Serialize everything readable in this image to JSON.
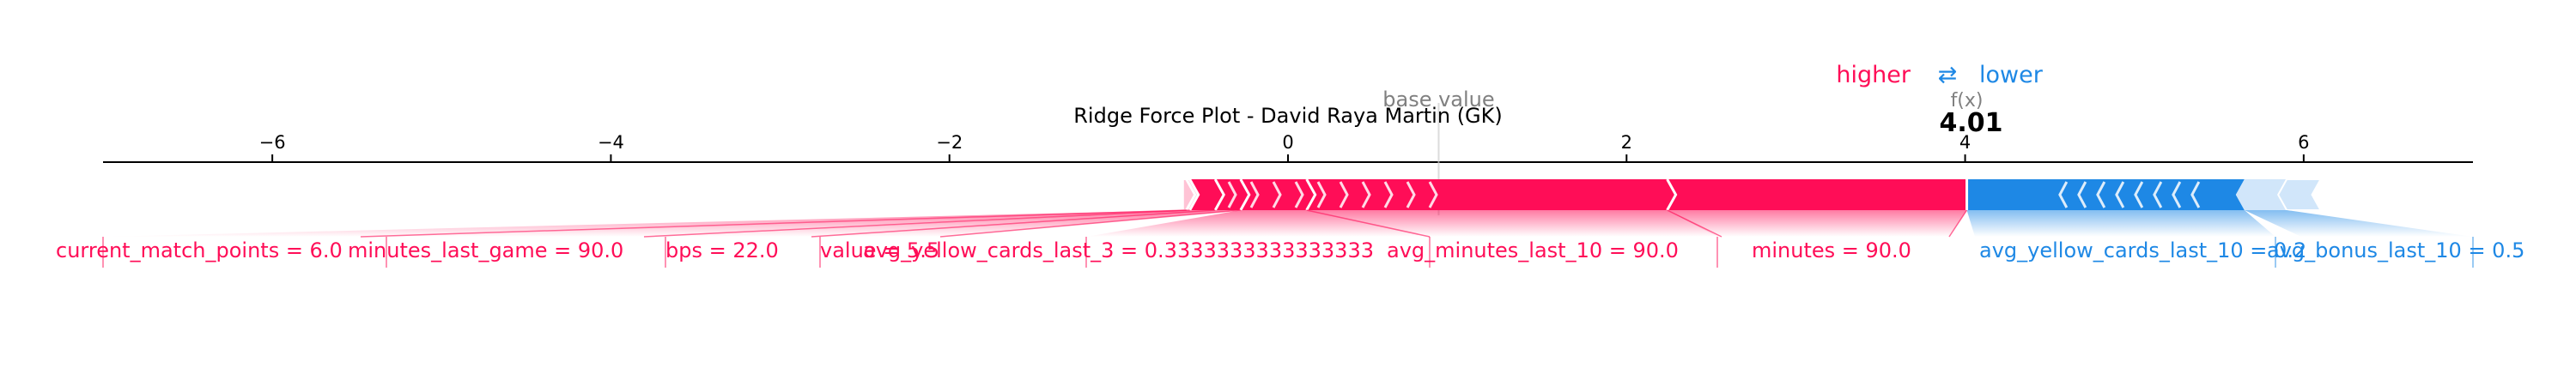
{
  "chart_data": {
    "type": "force",
    "title": "Ridge Force Plot - David Raya Martin (GK)",
    "xlim": [
      -7.0,
      7.0
    ],
    "ticks": [
      -6,
      -4,
      -2,
      0,
      2,
      4,
      6
    ],
    "tick_labels": [
      "−6",
      "−4",
      "−2",
      "0",
      "2",
      "4",
      "6"
    ],
    "base_value": 0.89,
    "base_value_label": "base value",
    "output_value": 4.01,
    "output_value_text": "4.01",
    "output_label": "f(x)",
    "legend": {
      "higher": "higher",
      "arrows": "⇄",
      "lower": "lower"
    },
    "colors": {
      "positive": "#ff0d57",
      "negative": "#1e88e5",
      "positive_light": "#ffc3d5",
      "negative_light": "#d1e6fa",
      "axis": "#000000",
      "muted": "#808080"
    },
    "positive_features": [
      {
        "label": "current_match_points = 6.0",
        "from": -0.62,
        "to": -0.6
      },
      {
        "label": "minutes_last_game = 90.0",
        "from": -0.6,
        "to": -0.58
      },
      {
        "label": "bps = 22.0",
        "from": -0.58,
        "to": -0.43
      },
      {
        "label": "value = 5.5",
        "from": -0.43,
        "to": -0.28
      },
      {
        "label": "avg_yellow_cards_last_3 = 0.3333333333333333",
        "from": -0.28,
        "to": 0.11
      },
      {
        "label": "avg_minutes_last_10 = 90.0",
        "from": 0.11,
        "to": 2.24
      },
      {
        "label": "minutes = 90.0",
        "from": 2.24,
        "to": 4.01
      }
    ],
    "negative_features": [
      {
        "label": "avg_yellow_cards_last_10 = 0.2",
        "from": 4.01,
        "to": 5.65
      },
      {
        "label": "avg_bonus_last_10 = 0.5",
        "from": 5.65,
        "to": 5.9
      }
    ]
  }
}
